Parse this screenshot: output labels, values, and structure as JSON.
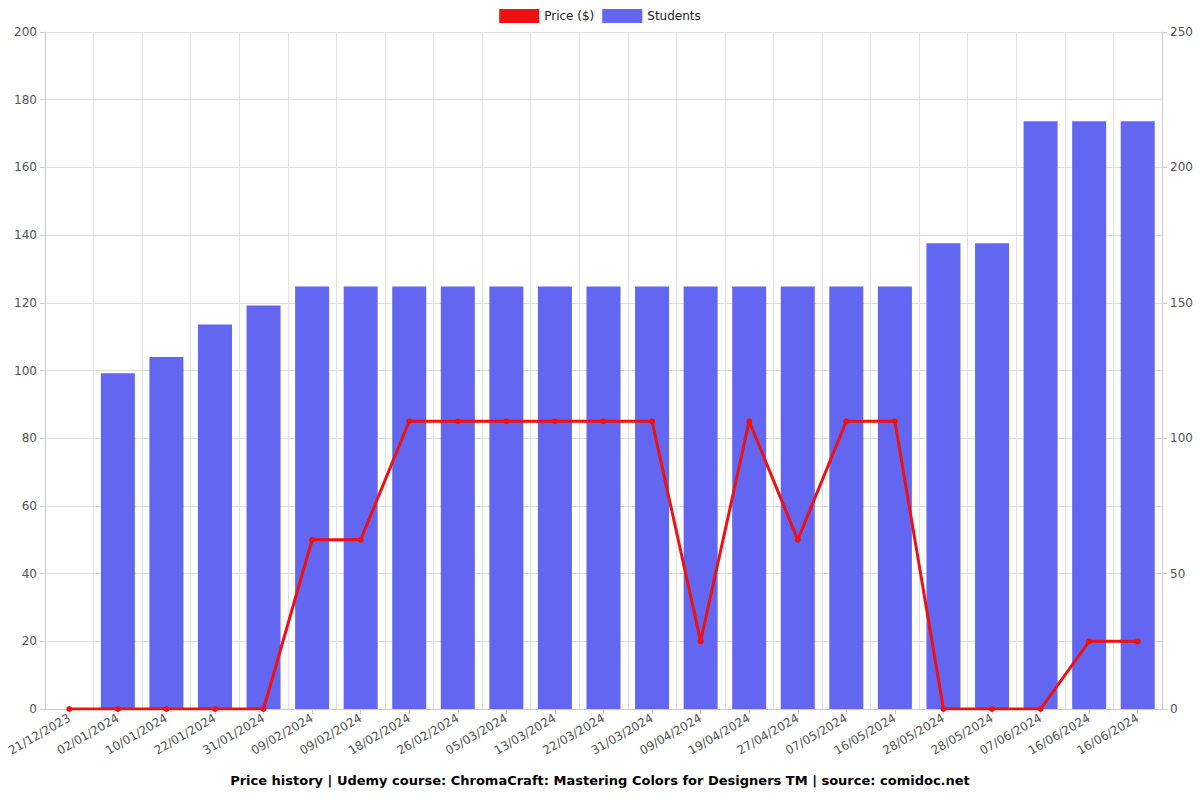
{
  "chart_data": {
    "type": "bar",
    "title": "Price history | Udemy course: ChromaCraft: Mastering Colors for Designers TM | source: comidoc.net",
    "categories": [
      "21/12/2023",
      "02/01/2024",
      "10/01/2024",
      "22/01/2024",
      "31/01/2024",
      "09/02/2024",
      "09/02/2024",
      "18/02/2024",
      "26/02/2024",
      "05/03/2024",
      "13/03/2024",
      "22/03/2024",
      "31/03/2024",
      "09/04/2024",
      "19/04/2024",
      "27/04/2024",
      "07/05/2024",
      "16/05/2024",
      "28/05/2024",
      "28/05/2024",
      "07/06/2024",
      "16/06/2024",
      "16/06/2024"
    ],
    "series": [
      {
        "name": "Price ($)",
        "type": "line",
        "color": "#ee1111",
        "marker": "circle",
        "values": [
          0,
          0,
          0,
          0,
          0,
          50,
          50,
          85,
          85,
          85,
          85,
          85,
          85,
          20,
          85,
          50,
          85,
          85,
          0,
          0,
          0,
          20,
          20
        ]
      },
      {
        "name": "Students",
        "type": "bar",
        "color": "#6366f1",
        "axis": "y2",
        "values": [
          null,
          124,
          130,
          142,
          149,
          156,
          156,
          156,
          156,
          156,
          156,
          156,
          156,
          156,
          156,
          156,
          156,
          156,
          172,
          172,
          217,
          217,
          217
        ]
      }
    ],
    "ylim": [
      0,
      200
    ],
    "yticks": [
      0,
      20,
      40,
      60,
      80,
      100,
      120,
      140,
      160,
      180,
      200
    ],
    "y2lim": [
      0,
      250
    ],
    "y2ticks": [
      0,
      50,
      100,
      150,
      200,
      250
    ],
    "grid": true,
    "legend": "top"
  }
}
